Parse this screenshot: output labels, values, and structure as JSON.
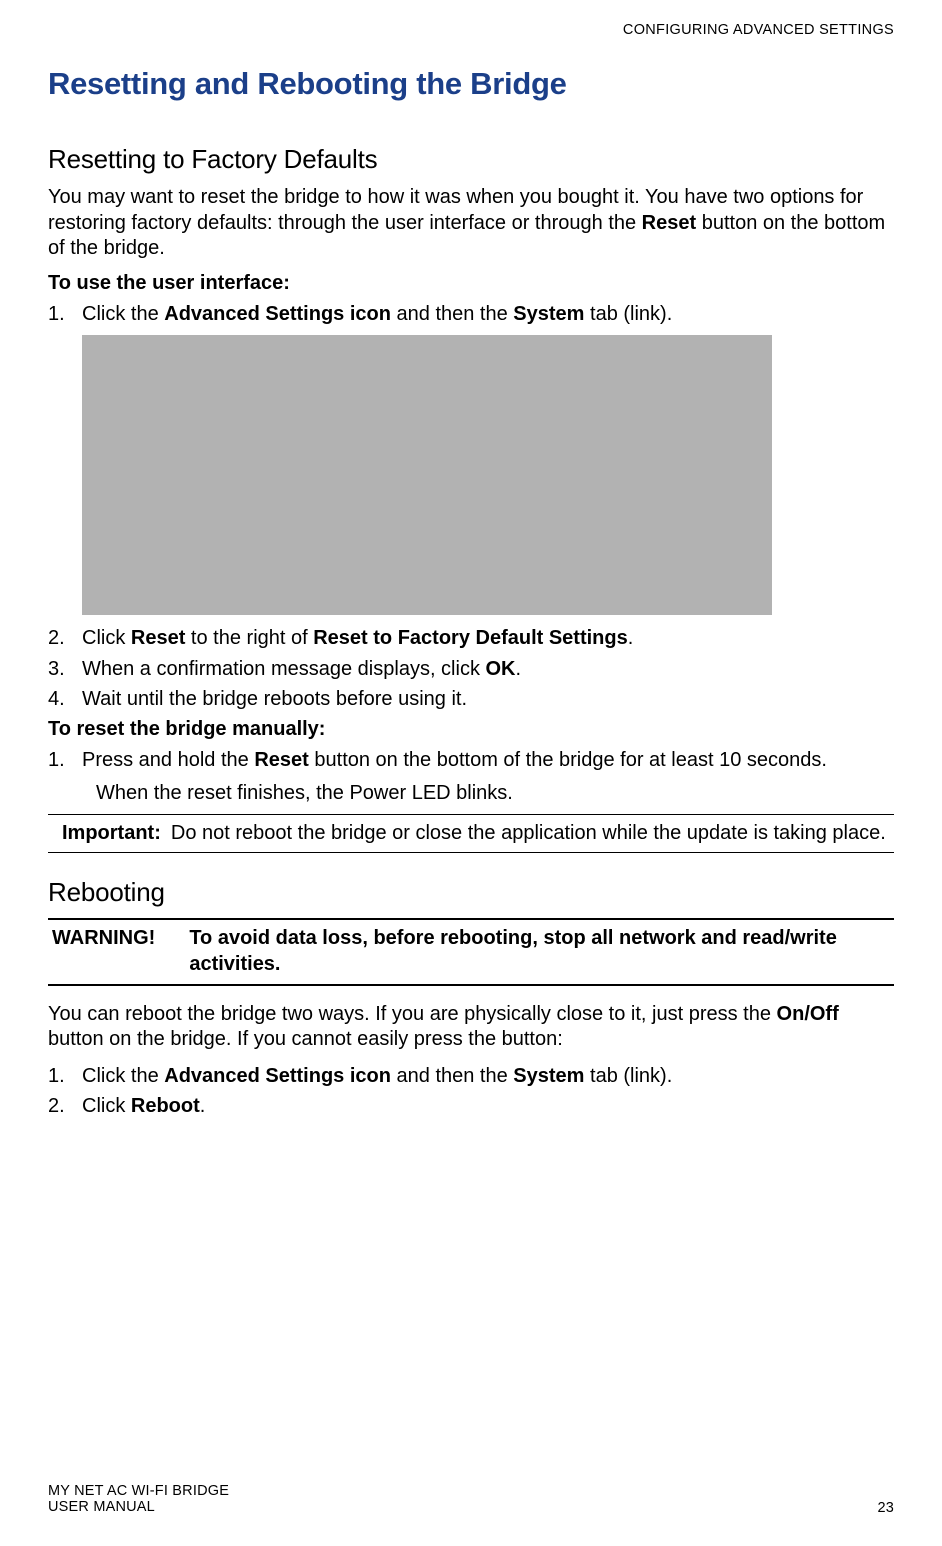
{
  "running_head": "CONFIGURING ADVANCED SETTINGS",
  "title": "Resetting and Rebooting the Bridge",
  "title_color": "#1b3f89",
  "section1": {
    "heading": "Resetting to Factory Defaults",
    "intro_pre": "You may want to reset the bridge to how it was when you bought it. You have two options for restoring factory defaults: through the user interface or through the ",
    "intro_bold": "Reset",
    "intro_post": " button on the bottom of the bridge.",
    "subhead1": "To use the user interface:",
    "step1_num": "1.",
    "step1_a": "Click the ",
    "step1_b1": "Advanced Settings icon",
    "step1_c": " and then the ",
    "step1_b2": "System",
    "step1_d": " tab (link).",
    "screenshot_bg": "#b2b2b2",
    "step2_num": "2.",
    "step2_a": "Click ",
    "step2_b1": "Reset",
    "step2_c": " to the right of ",
    "step2_b2": "Reset to Factory Default Settings",
    "step2_d": ".",
    "step3_num": "3.",
    "step3_a": "When a confirmation message displays, click ",
    "step3_b": "OK",
    "step3_c": ".",
    "step4_num": "4.",
    "step4_a": "Wait until the bridge reboots before using it.",
    "subhead2": "To reset the bridge manually:",
    "mstep1_num": "1.",
    "mstep1_a": "Press and hold the ",
    "mstep1_b": "Reset",
    "mstep1_c": " button on the bottom of the bridge for at least 10 seconds.",
    "mstep1_note": "When the reset finishes, the Power LED blinks.",
    "important_label": "Important:",
    "important_text": "Do not reboot the bridge or close the application while the update is taking place."
  },
  "section2": {
    "heading": "Rebooting",
    "warning_label": "WARNING!",
    "warning_text": "To avoid data loss, before rebooting, stop all network and read/write activities.",
    "intro_a": "You can reboot the bridge two ways. If you are physically close to it, just press the ",
    "intro_b": "On/Off",
    "intro_c": " button on the bridge. If you cannot easily press the button:",
    "step1_num": "1.",
    "step1_a": "Click the ",
    "step1_b1": "Advanced Settings icon",
    "step1_c": " and then the ",
    "step1_b2": "System",
    "step1_d": " tab (link).",
    "step2_num": "2.",
    "step2_a": "Click ",
    "step2_b": "Reboot",
    "step2_c": "."
  },
  "footer": {
    "left1": "MY NET AC WI-FI BRIDGE",
    "left2": "USER MANUAL",
    "page": "23"
  }
}
